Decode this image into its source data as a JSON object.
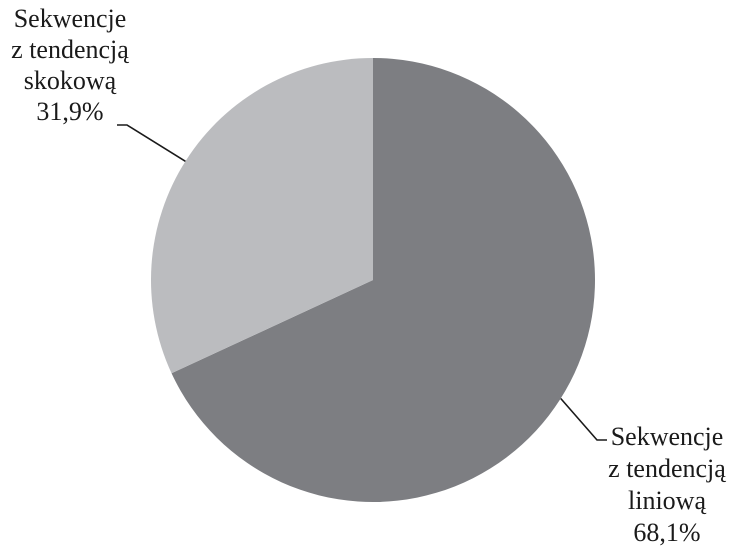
{
  "chart_data": {
    "type": "pie",
    "slices": [
      {
        "label_lines": [
          "Sekwencje",
          "z tendencją",
          "liniową"
        ],
        "value": 68.1,
        "value_label": "68,1%",
        "color": "#7d7e82"
      },
      {
        "label_lines": [
          "Sekwencje",
          "z tendencją",
          "skokową"
        ],
        "value": 31.9,
        "value_label": "31,9%",
        "color": "#bbbcbf"
      }
    ],
    "start_angle": "12 o'clock",
    "direction": "clockwise",
    "legend": "none",
    "data_labels": "outside with leader lines"
  }
}
